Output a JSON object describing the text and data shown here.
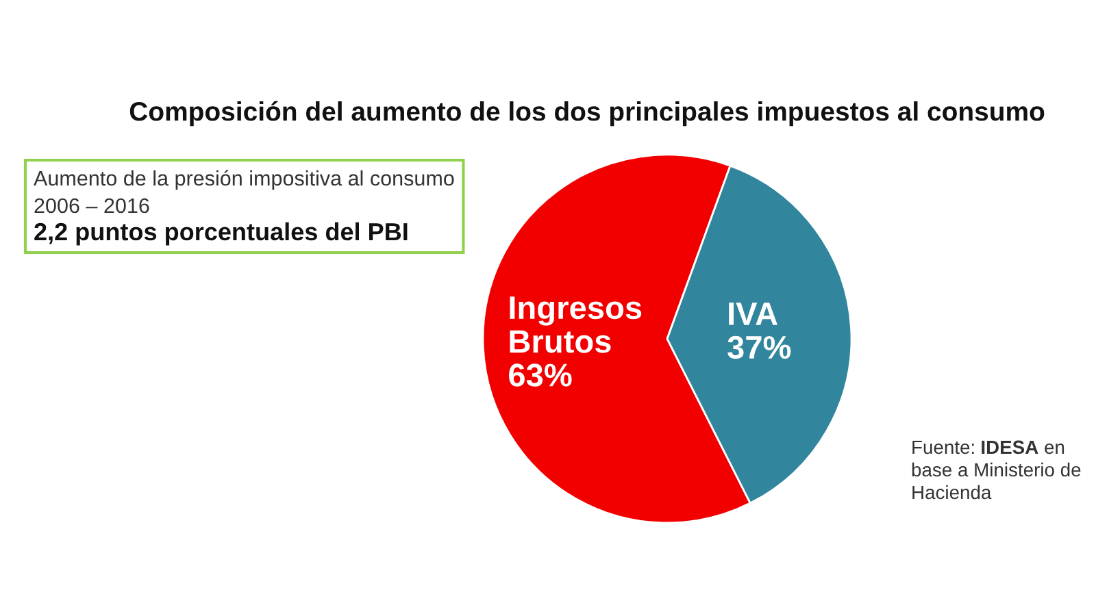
{
  "chart_data": {
    "type": "pie",
    "title": "Composición del aumento de los dos principales impuestos al consumo",
    "categories": [
      "Ingresos Brutos",
      "IVA"
    ],
    "values": [
      63,
      37
    ],
    "colors": [
      "#f20000",
      "#31859c"
    ],
    "value_labels": [
      "63%",
      "37%"
    ],
    "annotations": [
      "Aumento de la presión impositiva al consumo 2006 – 2016",
      "2,2 puntos porcentuales del PBI",
      "Fuente: IDESA en base a Ministerio de Hacienda"
    ]
  }
}
